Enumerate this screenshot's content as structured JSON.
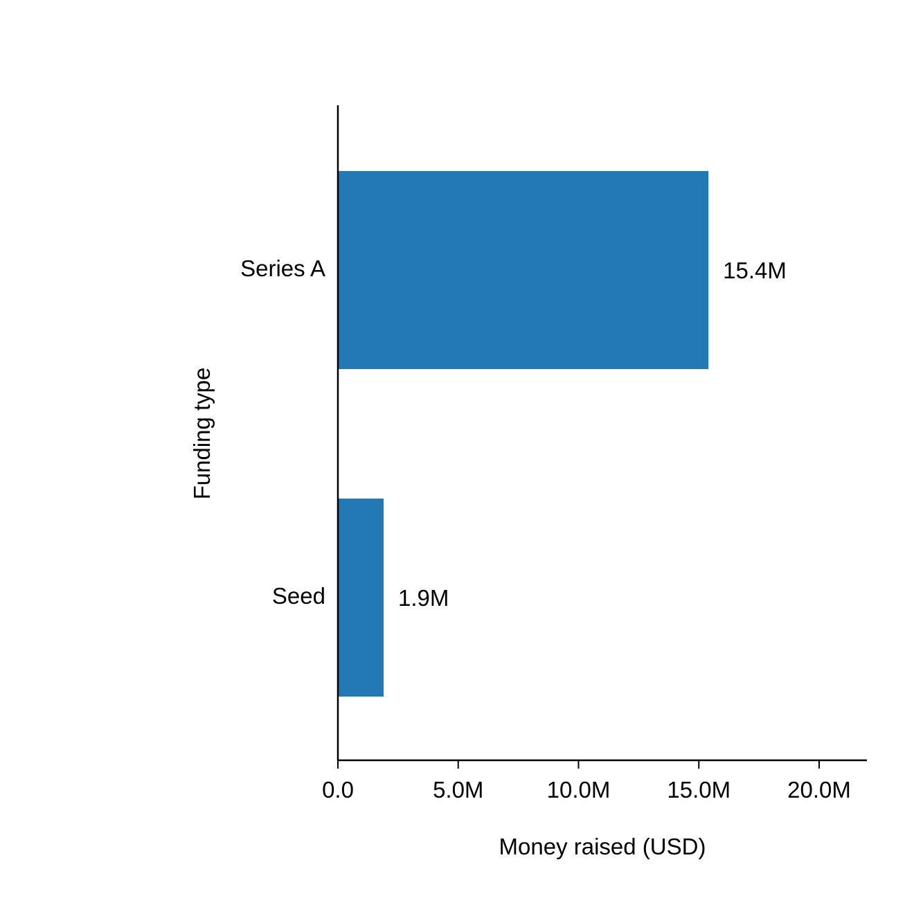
{
  "chart_data": {
    "type": "bar",
    "orientation": "horizontal",
    "title": "",
    "xlabel": "Money raised (USD)",
    "ylabel": "Funding type",
    "categories": [
      "Series A",
      "Seed"
    ],
    "values": [
      15400000,
      1900000
    ],
    "data_labels": [
      "15.4M",
      "1.9M"
    ],
    "xlim": [
      0,
      22000000
    ],
    "x_ticks": [
      0,
      5000000,
      10000000,
      15000000,
      20000000
    ],
    "x_tick_labels": [
      "0.0",
      "5.0M",
      "10.0M",
      "15.0M",
      "20.0M"
    ],
    "bar_color": "#2279b5",
    "grid": false,
    "legend": "none"
  }
}
